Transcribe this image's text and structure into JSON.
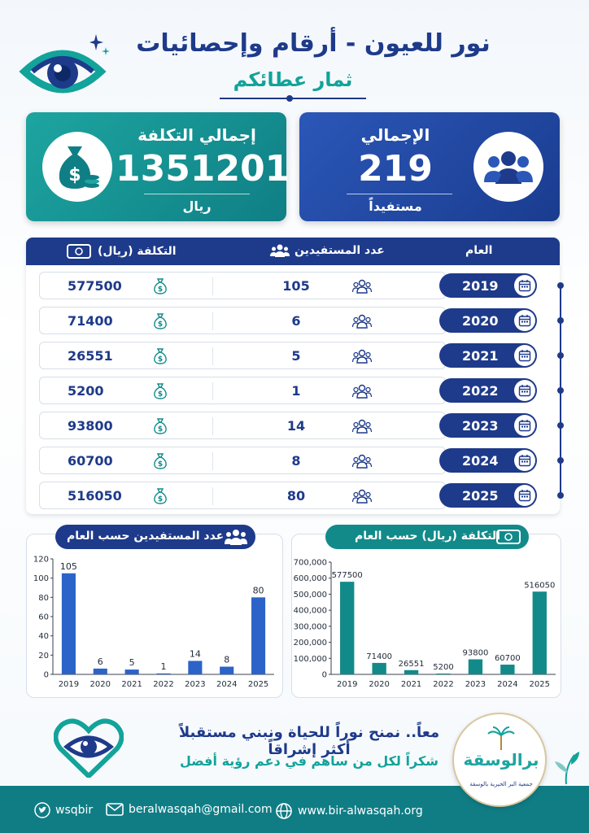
{
  "header": {
    "title": "نور للعيون - أرقام وإحصائيات",
    "subtitle": "ثمار عطائكم"
  },
  "summary": {
    "beneficiaries": {
      "label": "الإجمالي",
      "value": "219",
      "unit": "مستفيداً",
      "icon": "people-group-icon"
    },
    "cost": {
      "label": "إجمالي التكلفة",
      "value": "1351201",
      "unit": "ريال",
      "icon": "money-bag-icon"
    }
  },
  "table": {
    "headers": {
      "year": "العام",
      "beneficiaries": "عدد المستفيدين",
      "cost": "التكلفة (ريال)"
    },
    "rows": [
      {
        "year": "2019",
        "beneficiaries": "105",
        "cost": "577500"
      },
      {
        "year": "2020",
        "beneficiaries": "6",
        "cost": "71400"
      },
      {
        "year": "2021",
        "beneficiaries": "5",
        "cost": "26551"
      },
      {
        "year": "2022",
        "beneficiaries": "1",
        "cost": "5200"
      },
      {
        "year": "2023",
        "beneficiaries": "14",
        "cost": "93800"
      },
      {
        "year": "2024",
        "beneficiaries": "8",
        "cost": "60700"
      },
      {
        "year": "2025",
        "beneficiaries": "80",
        "cost": "516050"
      }
    ]
  },
  "chart_data": [
    {
      "type": "bar",
      "title": "عدد المستفيدين حسب العام",
      "categories": [
        "2019",
        "2020",
        "2021",
        "2022",
        "2023",
        "2024",
        "2025"
      ],
      "values": [
        105,
        6,
        5,
        1,
        14,
        8,
        80
      ],
      "ylim": [
        0,
        120
      ],
      "yticks": [
        "0",
        "20",
        "40",
        "60",
        "80",
        "100",
        "120"
      ],
      "color": "#2b63c9",
      "grid": false
    },
    {
      "type": "bar",
      "title": "التكلفة (ريال) حسب العام",
      "categories": [
        "2019",
        "2020",
        "2021",
        "2022",
        "2023",
        "2024",
        "2025"
      ],
      "values": [
        577500,
        71400,
        26551,
        5200,
        93800,
        60700,
        516050
      ],
      "ylim": [
        0,
        700000
      ],
      "yticks": [
        "0",
        "100,000",
        "200,000",
        "300,000",
        "400,000",
        "500,000",
        "600,000",
        "700,000"
      ],
      "color": "#128a8a",
      "grid": false
    }
  ],
  "footer": {
    "message": "معاً.. نمنح نوراً للحياة ونبني مستقبلاً أكثر إشراقاً",
    "thanks": "شكراً لكل من ساهم في دعم رؤية أفضل",
    "logo_name": "برالوسقة",
    "logo_caption": "جمعية البر الخيرية بالوسقة",
    "twitter": "wsqbir",
    "email": "beralwasqah@gmail.com",
    "website": "www.bir-alwasqah.org"
  },
  "colors": {
    "navy": "#1e3a8a",
    "teal": "#12a39a",
    "footer": "#107d85"
  }
}
